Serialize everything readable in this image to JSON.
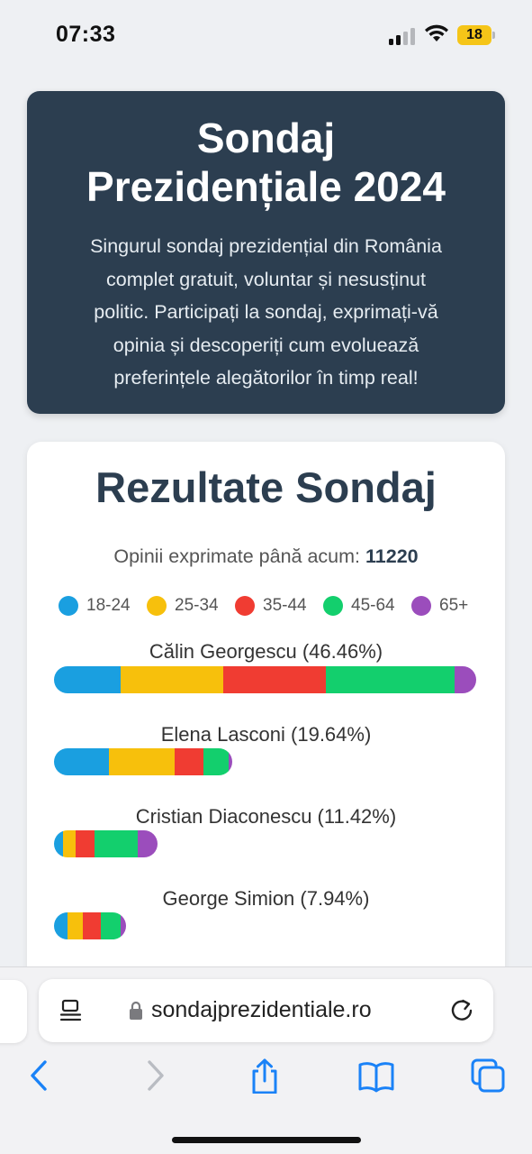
{
  "status_bar": {
    "time": "07:33",
    "battery": "18",
    "signal_icon": "cellular-signal-icon",
    "wifi_icon": "wifi-icon"
  },
  "hero": {
    "title_line1": "Sondaj",
    "title_line2": "Prezidențiale 2024",
    "description_lines": [
      "Singurul sondaj prezidențial din România",
      "complet gratuit, voluntar și nesusținut",
      "politic. Participați la sondaj, exprimați-vă",
      "opinia și descoperiți cum evoluează",
      "preferințele alegătorilor în timp real!"
    ]
  },
  "results": {
    "title": "Rezultate Sondaj",
    "votes_label": "Opinii exprimate până acum:",
    "votes_count": "11220",
    "legend": [
      {
        "label": "18-24",
        "color": "#1a9fe0"
      },
      {
        "label": "25-34",
        "color": "#f7c00c"
      },
      {
        "label": "35-44",
        "color": "#f03c32"
      },
      {
        "label": "45-64",
        "color": "#13cf6d"
      },
      {
        "label": "65+",
        "color": "#9b4dbc"
      }
    ],
    "candidates": [
      {
        "label": "Călin Georgescu (46.46%)",
        "share": 46.46,
        "segments": [
          0.157,
          0.243,
          0.243,
          0.305,
          0.052
        ]
      },
      {
        "label": "Elena Lasconi (19.64%)",
        "share": 19.64,
        "segments": [
          0.31,
          0.365,
          0.165,
          0.14,
          0.02
        ]
      },
      {
        "label": "Cristian Diaconescu (11.42%)",
        "share": 11.42,
        "segments": [
          0.09,
          0.12,
          0.18,
          0.42,
          0.19
        ]
      },
      {
        "label": "George Simion (7.94%)",
        "share": 7.94,
        "segments": [
          0.19,
          0.21,
          0.25,
          0.28,
          0.07
        ]
      }
    ]
  },
  "browser": {
    "url": "sondajprezidentiale.ro",
    "menu_icon": "page-menu-icon",
    "lock_icon": "lock-icon",
    "reload_icon": "reload-icon",
    "nav": [
      "back-icon",
      "forward-icon",
      "share-icon",
      "bookmarks-icon",
      "tabs-icon"
    ]
  }
}
